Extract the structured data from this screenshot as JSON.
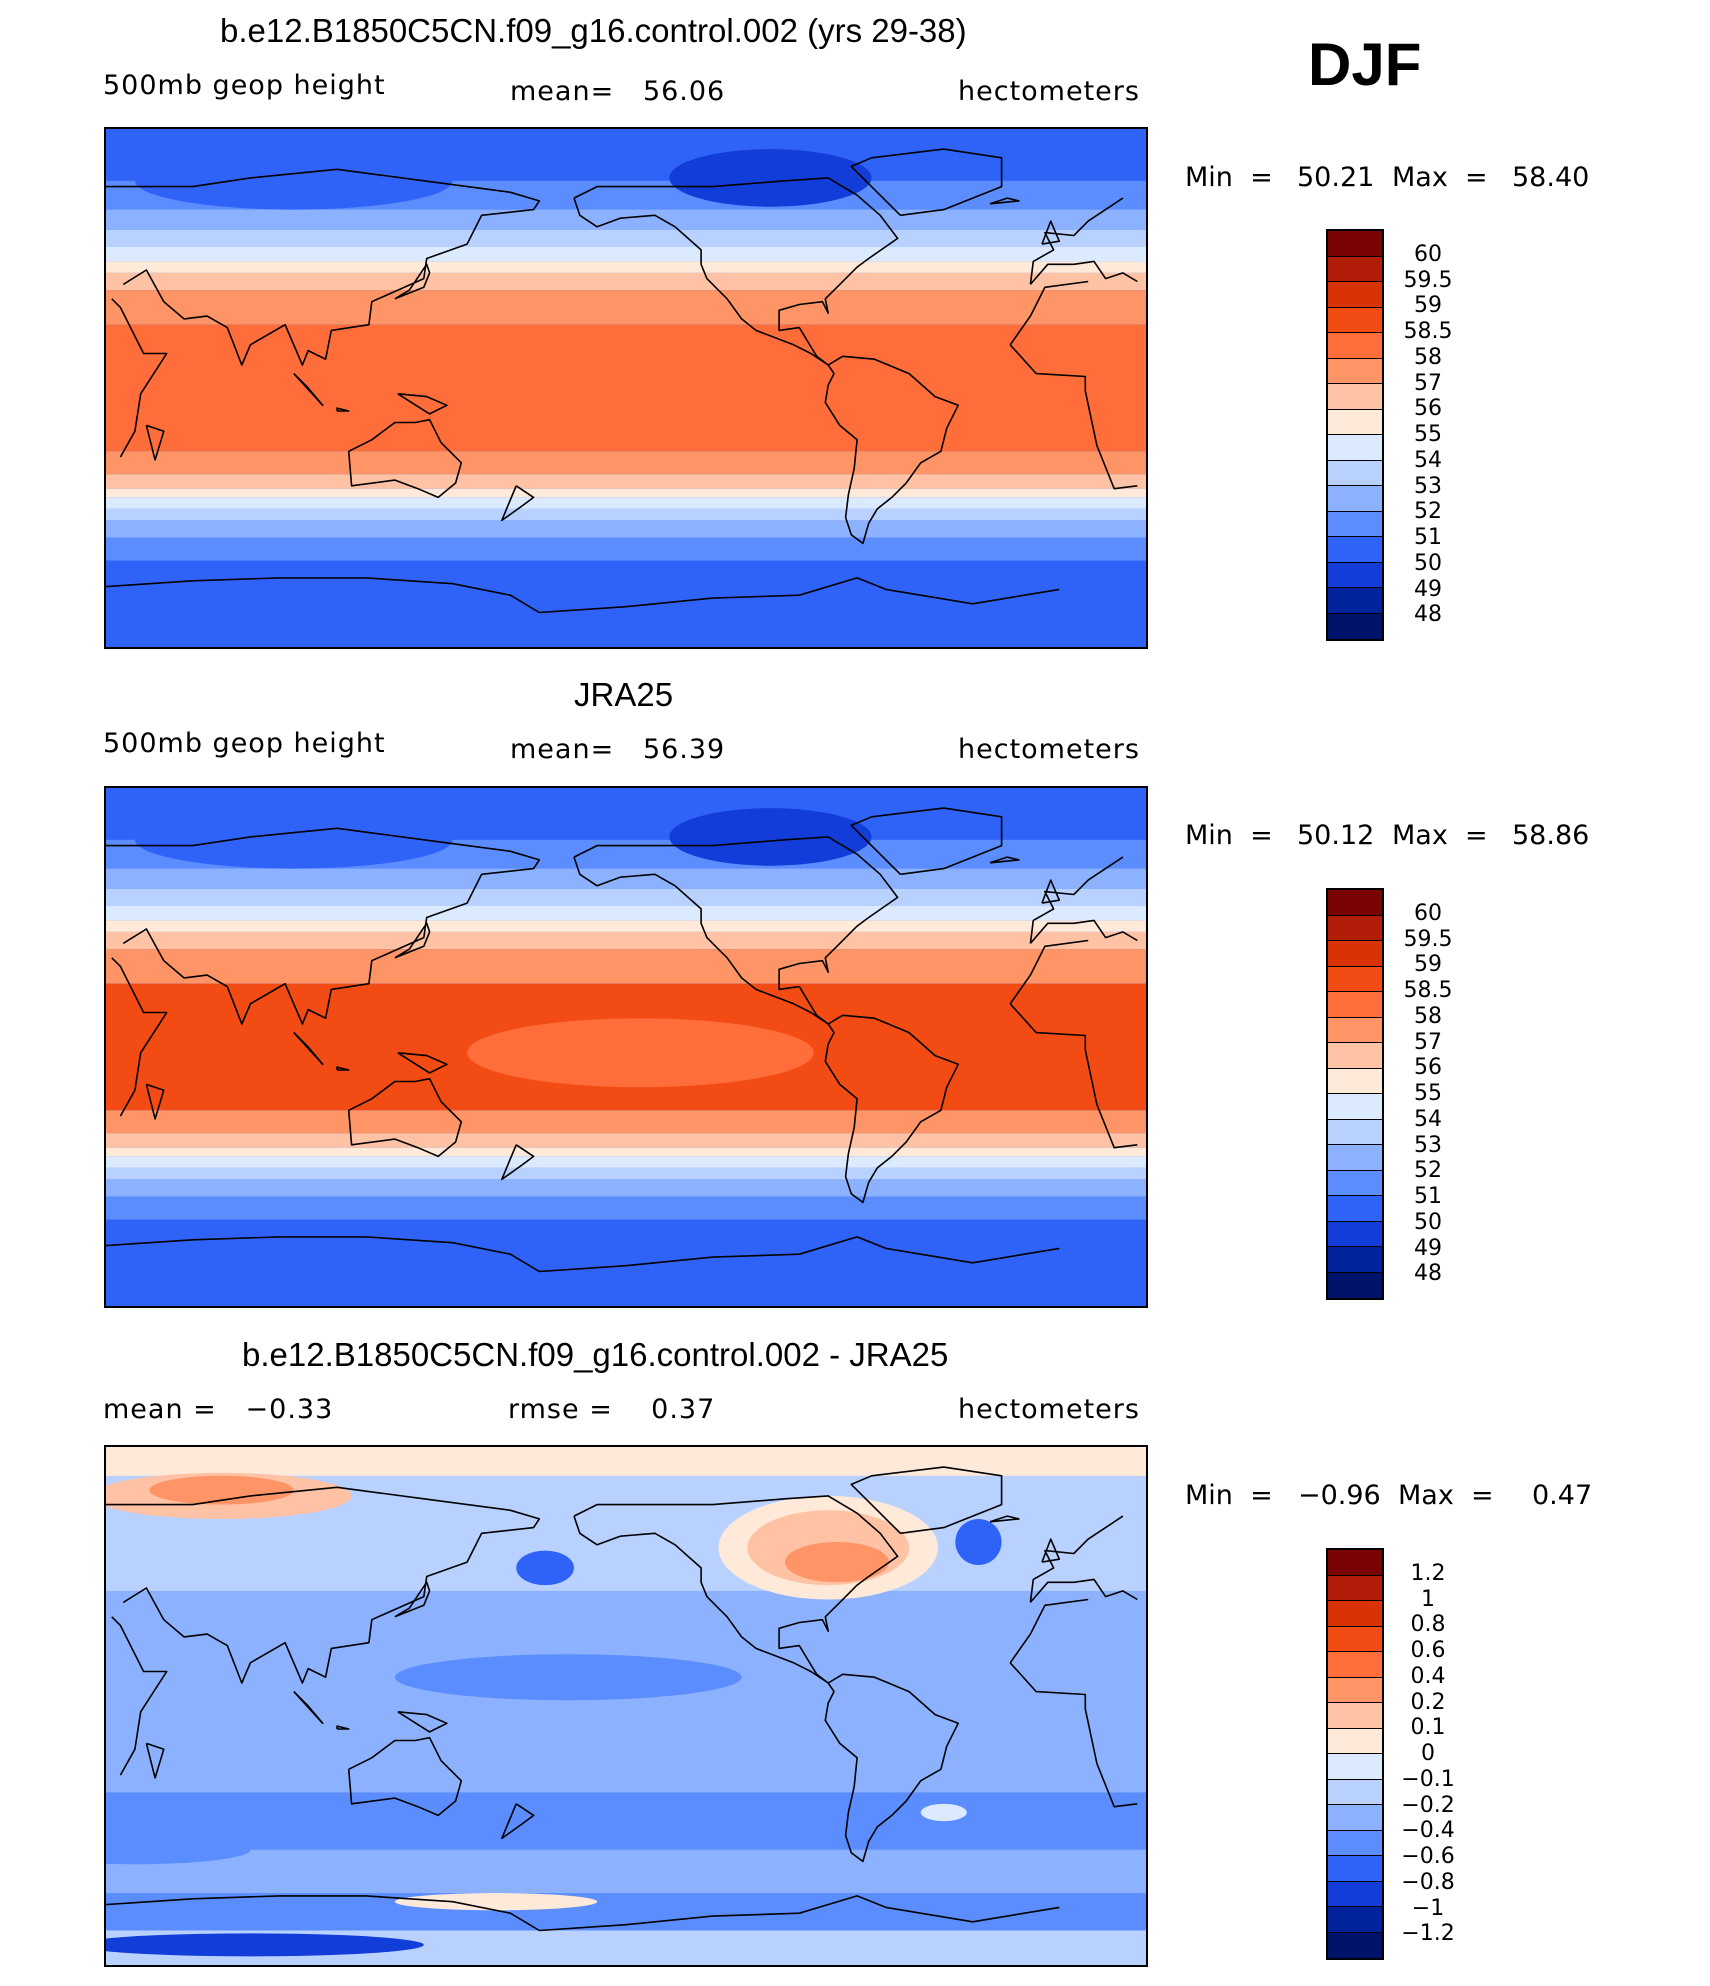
{
  "season": "DJF",
  "land_color": "#000000",
  "panels": [
    {
      "title": "b.e12.B1850C5CN.f09_g16.control.002 (yrs 29-38)",
      "left_label": "500mb geop height",
      "center_label": "mean=   56.06",
      "units": "hectometers",
      "min_label": "Min  =",
      "min_value": "50.21",
      "max_label": "Max  =",
      "max_value": "58.40",
      "field": "height_model",
      "colorbar": {
        "labels": [
          "60",
          "59.5",
          "59",
          "58.5",
          "58",
          "57",
          "56",
          "55",
          "54",
          "53",
          "52",
          "51",
          "50",
          "49",
          "48"
        ],
        "colors": [
          "#7a0403",
          "#b21d0a",
          "#d93305",
          "#f24c14",
          "#ff6d3a",
          "#ff9566",
          "#ffc2a5",
          "#ffe9d8",
          "#dceaff",
          "#b8d1ff",
          "#8cb2ff",
          "#5b8dff",
          "#2f63f8",
          "#123dd8",
          "#00239c",
          "#00136b"
        ]
      }
    },
    {
      "title": "JRA25",
      "left_label": "500mb geop height",
      "center_label": "mean=   56.39",
      "units": "hectometers",
      "min_label": "Min  =",
      "min_value": "50.12",
      "max_label": "Max  =",
      "max_value": "58.86",
      "field": "height_obs",
      "colorbar": {
        "labels": [
          "60",
          "59.5",
          "59",
          "58.5",
          "58",
          "57",
          "56",
          "55",
          "54",
          "53",
          "52",
          "51",
          "50",
          "49",
          "48"
        ],
        "colors": [
          "#7a0403",
          "#b21d0a",
          "#d93305",
          "#f24c14",
          "#ff6d3a",
          "#ff9566",
          "#ffc2a5",
          "#ffe9d8",
          "#dceaff",
          "#b8d1ff",
          "#8cb2ff",
          "#5b8dff",
          "#2f63f8",
          "#123dd8",
          "#00239c",
          "#00136b"
        ]
      }
    },
    {
      "title": "b.e12.B1850C5CN.f09_g16.control.002 - JRA25",
      "left_label": "mean =   −0.33",
      "center_label": "rmse =    0.37",
      "units": "hectometers",
      "min_label": "Min  =",
      "min_value": "−0.96",
      "max_label": "Max  =",
      "max_value": "0.47",
      "field": "difference",
      "colorbar": {
        "labels": [
          "1.2",
          "1",
          "0.8",
          "0.6",
          "0.4",
          "0.2",
          "0.1",
          "0",
          "−0.1",
          "−0.2",
          "−0.4",
          "−0.6",
          "−0.8",
          "−1",
          "−1.2"
        ],
        "colors": [
          "#7a0403",
          "#b21d0a",
          "#d93305",
          "#f24c14",
          "#ff6d3a",
          "#ff9566",
          "#ffc2a5",
          "#ffe9d8",
          "#dceaff",
          "#b8d1ff",
          "#8cb2ff",
          "#5b8dff",
          "#2f63f8",
          "#123dd8",
          "#00239c",
          "#00136b"
        ]
      }
    }
  ]
}
